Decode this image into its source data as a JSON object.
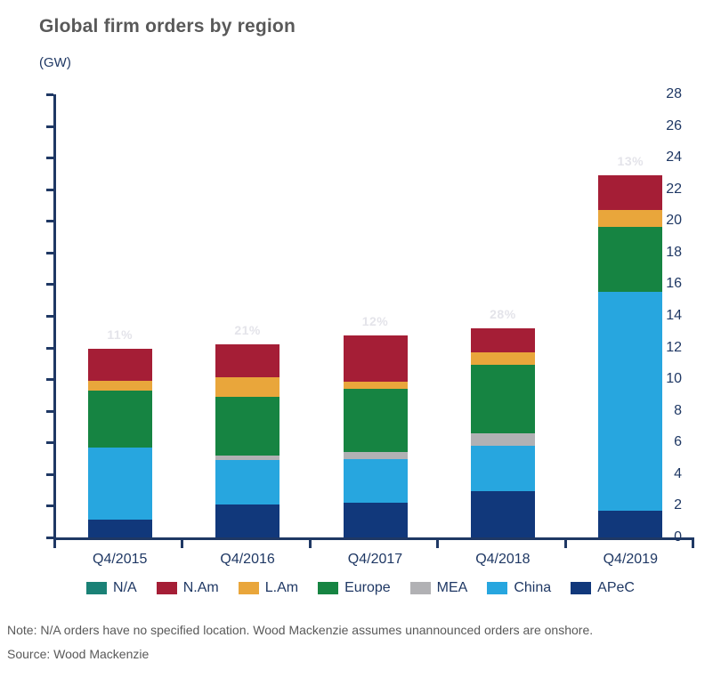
{
  "page": {
    "note": "Note: N/A orders have no specified location. Wood Mackenzie assumes unannounced orders are onshore.",
    "source": "Source: Wood Mackenzie"
  },
  "chart_data": {
    "type": "bar",
    "stacked": true,
    "title": "Global firm orders by region",
    "unit_label": "(GW)",
    "xlabel": "",
    "ylabel": "(GW)",
    "ylim": [
      0,
      28
    ],
    "ytick_step": 2,
    "grid": false,
    "legend_position": "bottom",
    "categories": [
      "Q4/2015",
      "Q4/2016",
      "Q4/2017",
      "Q4/2018",
      "Q4/2019"
    ],
    "series": [
      {
        "name": "APeC",
        "color": "#11387B",
        "values": [
          1.1,
          2.1,
          2.2,
          2.9,
          1.7
        ]
      },
      {
        "name": "China",
        "color": "#27A6DF",
        "values": [
          4.6,
          2.8,
          2.75,
          2.9,
          13.8
        ]
      },
      {
        "name": "MEA",
        "color": "#B1B1B4",
        "values": [
          0,
          0.25,
          0.45,
          0.8,
          0
        ]
      },
      {
        "name": "Europe",
        "color": "#168442",
        "values": [
          3.6,
          3.75,
          4.0,
          4.3,
          4.1
        ]
      },
      {
        "name": "L.Am",
        "color": "#E9A63B",
        "values": [
          0.6,
          1.2,
          0.45,
          0.8,
          1.1
        ]
      },
      {
        "name": "N.Am",
        "color": "#A51E36",
        "values": [
          2.0,
          2.1,
          2.9,
          1.5,
          2.2
        ]
      },
      {
        "name": "N/A",
        "color": "#1A8176",
        "values": [
          0,
          0,
          0,
          0,
          0
        ]
      }
    ],
    "totals": [
      11.9,
      12.2,
      12.75,
      13.2,
      22.9
    ],
    "bar_percent_labels": [
      "11%",
      "21%",
      "12%",
      "28%",
      "13%"
    ],
    "legend_order": [
      "N/A",
      "N.Am",
      "L.Am",
      "Europe",
      "MEA",
      "China",
      "APeC"
    ],
    "colors": {
      "axis": "#1F3864",
      "axis_text": "#1F3864",
      "title_text": "#595959",
      "note_text": "#595959",
      "percent_label": "#E4E4EA"
    }
  }
}
